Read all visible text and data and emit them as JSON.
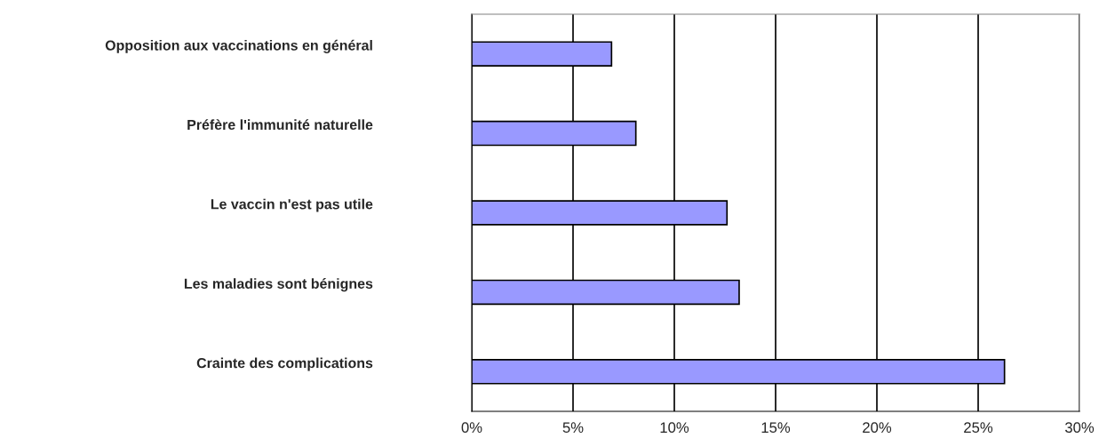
{
  "chart_data": {
    "type": "bar",
    "orientation": "horizontal",
    "categories": [
      "Opposition aux vaccinations en général",
      "Préfère l'immunité naturelle",
      "Le vaccin n'est pas utile",
      "Les maladies sont bénignes",
      "Crainte des complications"
    ],
    "values": [
      6.9,
      8.1,
      12.6,
      13.2,
      26.3
    ],
    "color": "#9999ff",
    "xlim": [
      0,
      30
    ],
    "xticks": [
      {
        "value": 0,
        "label": "0%"
      },
      {
        "value": 5,
        "label": "5%"
      },
      {
        "value": 10,
        "label": "10%"
      },
      {
        "value": 15,
        "label": "15%"
      },
      {
        "value": 20,
        "label": "20%"
      },
      {
        "value": 25,
        "label": "25%"
      },
      {
        "value": 30,
        "label": "30%"
      }
    ],
    "grid": "x",
    "legend": false
  }
}
